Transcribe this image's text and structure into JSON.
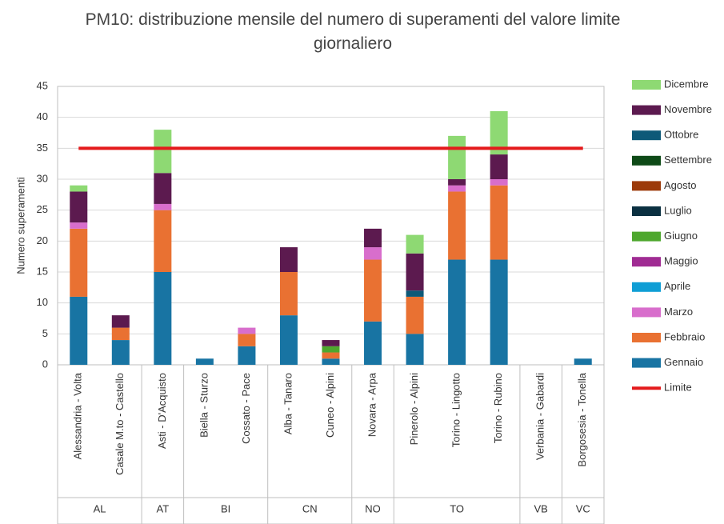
{
  "chart_data": {
    "type": "bar",
    "stacked": true,
    "title": "PM10: distribuzione mensile del numero di superamenti del valore limite giornaliero",
    "y_label": "Numero superamenti",
    "categories": [
      "Alessandria - Volta",
      "Casale M.to - Castello",
      "Asti - D'Acquisto",
      "Biella - Sturzo",
      "Cossato - Pace",
      "Alba - Tanaro",
      "Cuneo - Alpini",
      "Novara - Arpa",
      "Pinerolo - Alpini",
      "Torino - Lingotto",
      "Torino - Rubino",
      "Verbania - Gabardi",
      "Borgosesia - Tonella"
    ],
    "groups": [
      {
        "name": "AL",
        "size": 2
      },
      {
        "name": "AT",
        "size": 1
      },
      {
        "name": "BI",
        "size": 2
      },
      {
        "name": "CN",
        "size": 2
      },
      {
        "name": "NO",
        "size": 1
      },
      {
        "name": "TO",
        "size": 3
      },
      {
        "name": "VB",
        "size": 1
      },
      {
        "name": "VC",
        "size": 1
      }
    ],
    "series": [
      {
        "name": "Gennaio",
        "color": "#1874a3",
        "values": [
          11,
          4,
          15,
          1,
          3,
          8,
          1,
          7,
          5,
          17,
          17,
          0,
          1
        ]
      },
      {
        "name": "Febbraio",
        "color": "#e97132",
        "values": [
          11,
          2,
          10,
          0,
          2,
          7,
          1,
          10,
          6,
          11,
          12,
          0,
          0
        ]
      },
      {
        "name": "Marzo",
        "color": "#d86ecc",
        "values": [
          1,
          0,
          1,
          0,
          1,
          0,
          0,
          2,
          0,
          1,
          1,
          0,
          0
        ]
      },
      {
        "name": "Aprile",
        "color": "#0f9ed5",
        "values": [
          0,
          0,
          0,
          0,
          0,
          0,
          0,
          0,
          0,
          0,
          0,
          0,
          0
        ]
      },
      {
        "name": "Maggio",
        "color": "#a02b93",
        "values": [
          0,
          0,
          0,
          0,
          0,
          0,
          0,
          0,
          0,
          0,
          0,
          0,
          0
        ]
      },
      {
        "name": "Giugno",
        "color": "#4ea72e",
        "values": [
          0,
          0,
          0,
          0,
          0,
          0,
          1,
          0,
          0,
          0,
          0,
          0,
          0
        ]
      },
      {
        "name": "Luglio",
        "color": "#0b3041",
        "values": [
          0,
          0,
          0,
          0,
          0,
          0,
          0,
          0,
          0,
          0,
          0,
          0,
          0
        ]
      },
      {
        "name": "Agosto",
        "color": "#9c3a0a",
        "values": [
          0,
          0,
          0,
          0,
          0,
          0,
          0,
          0,
          0,
          0,
          0,
          0,
          0
        ]
      },
      {
        "name": "Settembre",
        "color": "#0e4a17",
        "values": [
          0,
          0,
          0,
          0,
          0,
          0,
          0,
          0,
          0,
          0,
          0,
          0,
          0
        ]
      },
      {
        "name": "Ottobre",
        "color": "#0d5978",
        "values": [
          0,
          0,
          0,
          0,
          0,
          0,
          0,
          0,
          1,
          0,
          0,
          0,
          0
        ]
      },
      {
        "name": "Novembre",
        "color": "#5c1a4f",
        "values": [
          5,
          2,
          5,
          0,
          0,
          4,
          1,
          3,
          6,
          1,
          4,
          0,
          0
        ]
      },
      {
        "name": "Dicembre",
        "color": "#8ed973",
        "values": [
          1,
          0,
          7,
          0,
          0,
          0,
          0,
          0,
          3,
          7,
          7,
          0,
          0
        ]
      },
      {
        "name": "Limite",
        "color": "#e41a1c",
        "type": "line",
        "values": [
          35,
          35,
          35,
          35,
          35,
          35,
          35,
          35,
          35,
          35,
          35,
          35,
          35
        ]
      }
    ],
    "ylim": [
      0,
      45
    ],
    "yticks": [
      0,
      5,
      10,
      15,
      20,
      25,
      30,
      35,
      40,
      45
    ],
    "grid": true,
    "legend": "right"
  }
}
